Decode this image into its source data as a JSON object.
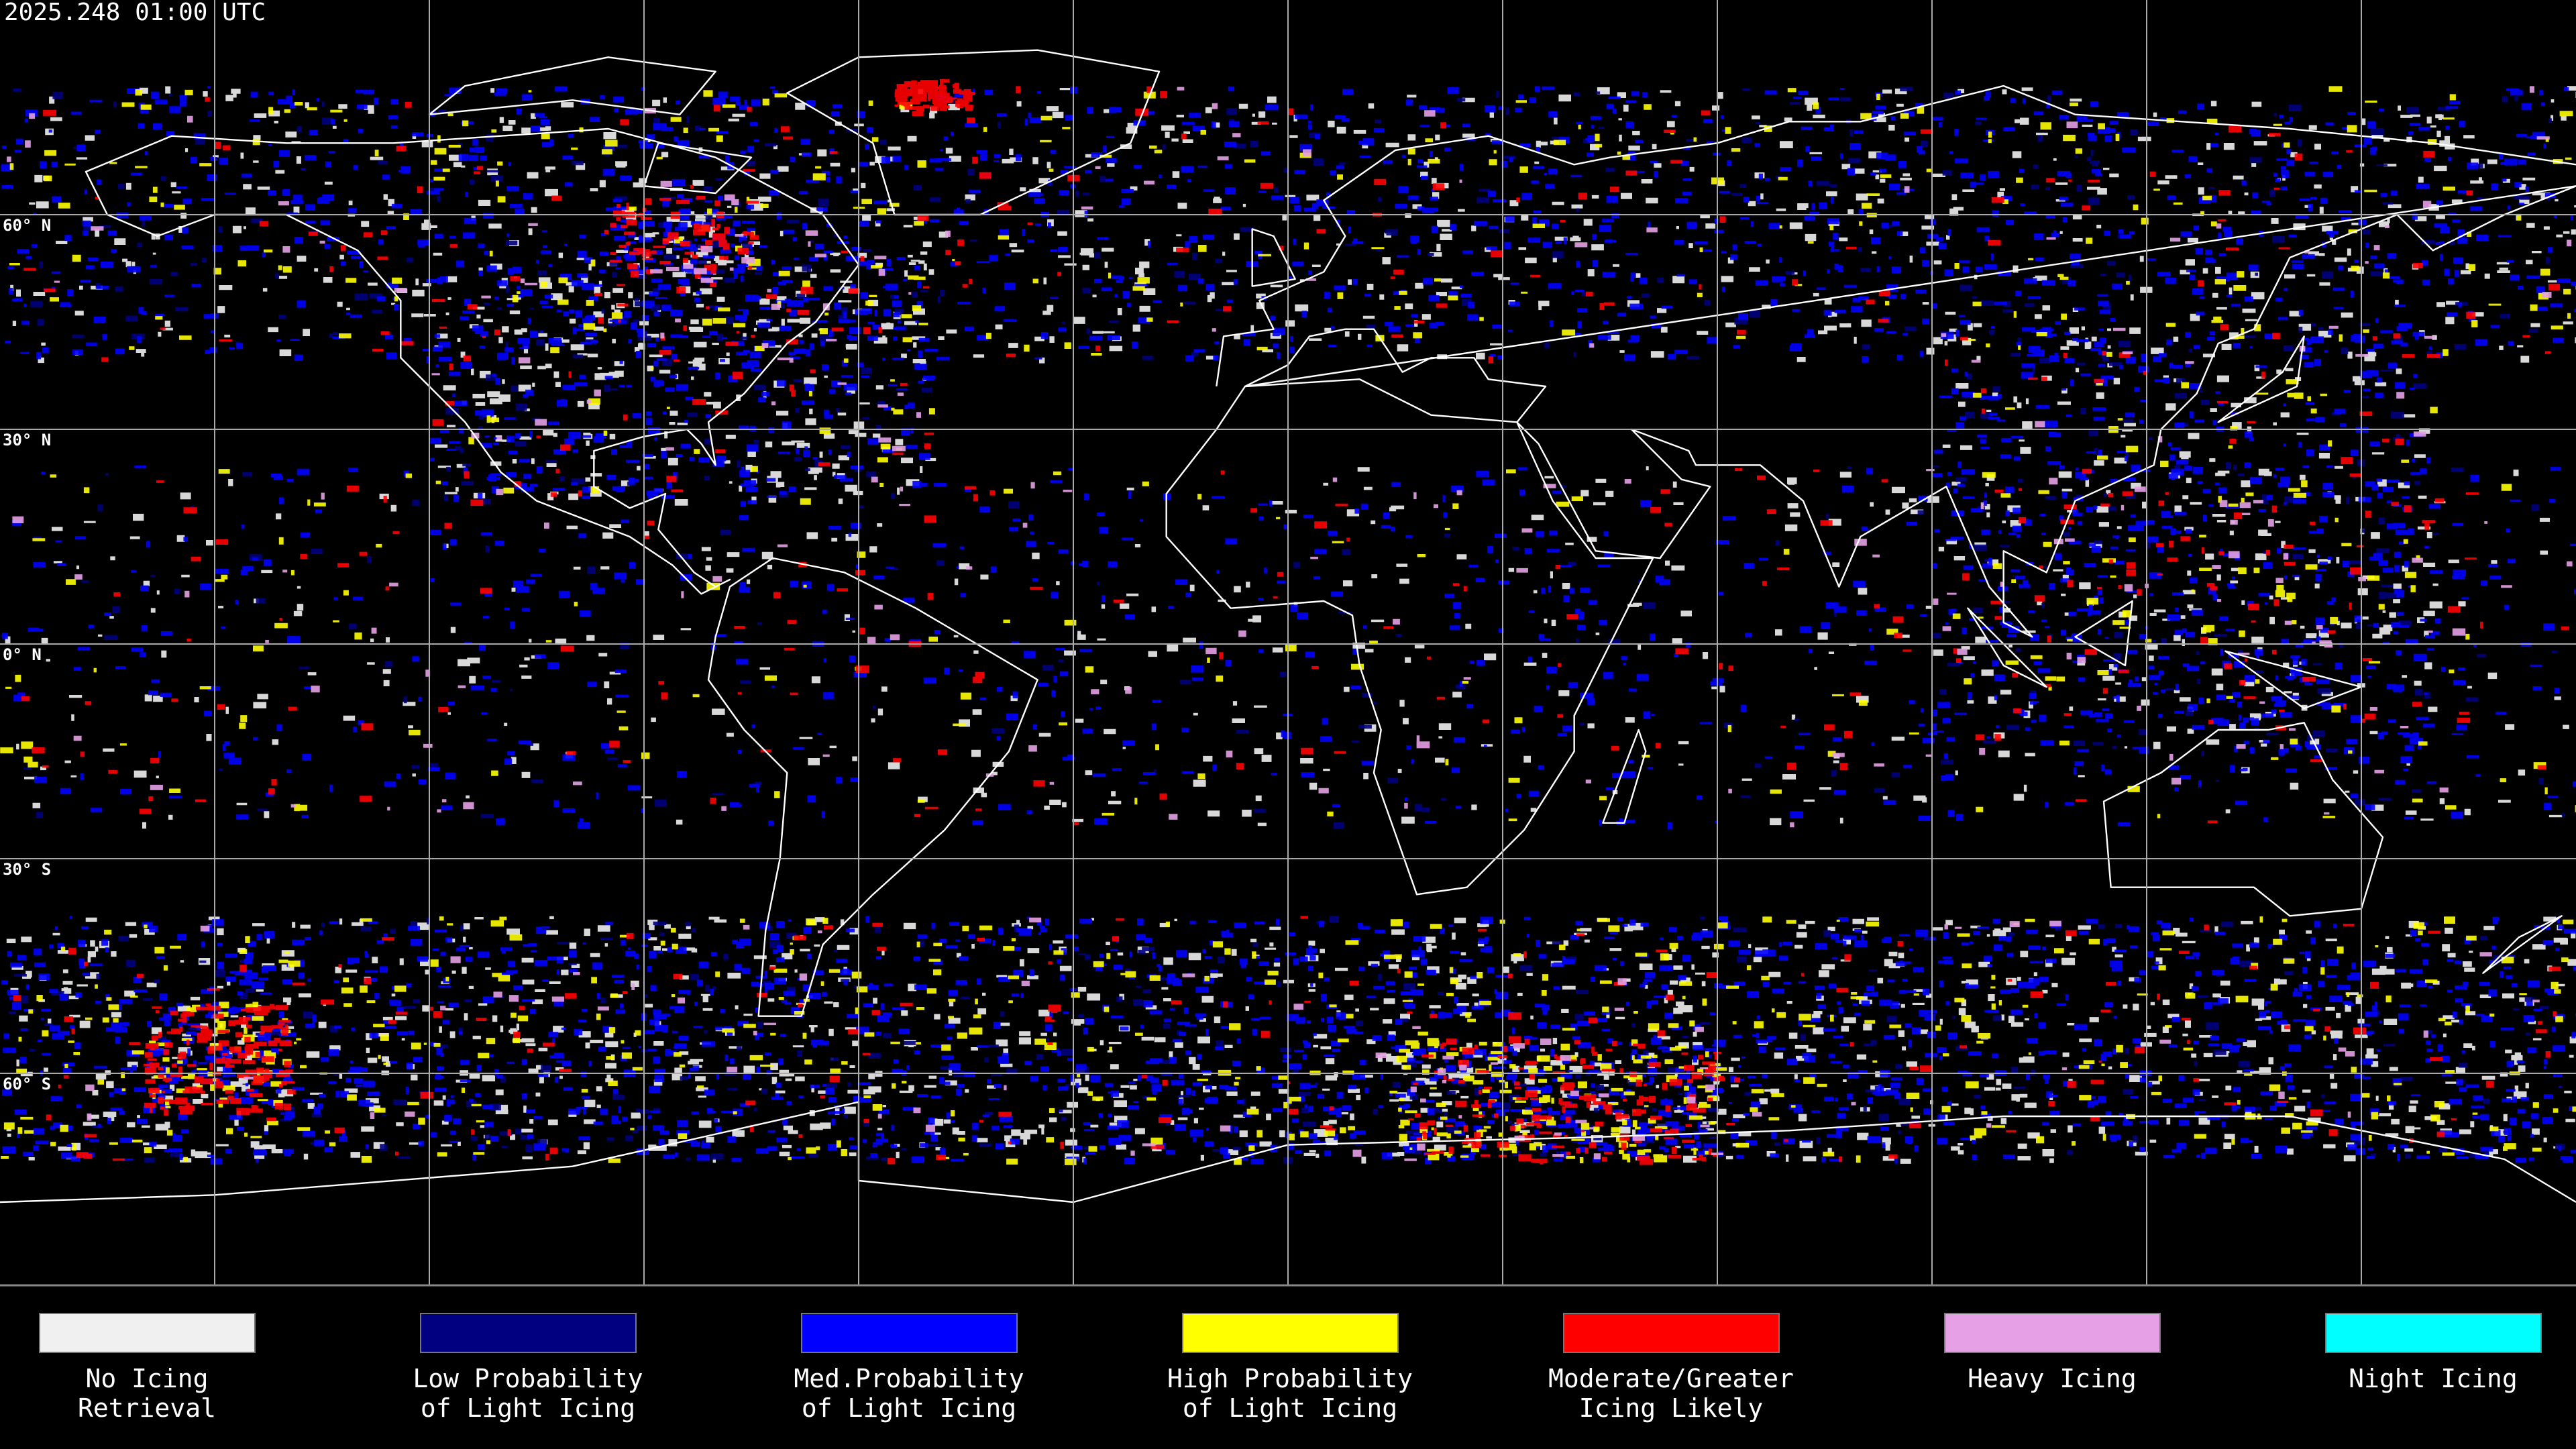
{
  "header": {
    "timestamp": "2025.248 01:00 UTC"
  },
  "map": {
    "latitude_labels": [
      "60° N",
      "30° N",
      "0° N",
      "30° S",
      "60° S"
    ]
  },
  "legend": {
    "items": [
      {
        "label": [
          "No Icing",
          "Retrieval"
        ],
        "color": "#f0f0f0"
      },
      {
        "label": [
          "Low Probability",
          "of Light Icing"
        ],
        "color": "#000080"
      },
      {
        "label": [
          "Med.Probability",
          "of Light Icing"
        ],
        "color": "#0000ff"
      },
      {
        "label": [
          "High Probability",
          "of Light Icing"
        ],
        "color": "#ffff00"
      },
      {
        "label": [
          "Moderate/Greater",
          "Icing Likely"
        ],
        "color": "#ff0000"
      },
      {
        "label": [
          "Heavy Icing",
          ""
        ],
        "color": "#e6a0e6"
      },
      {
        "label": [
          "Night Icing",
          ""
        ],
        "color": "#00ffff"
      }
    ]
  }
}
